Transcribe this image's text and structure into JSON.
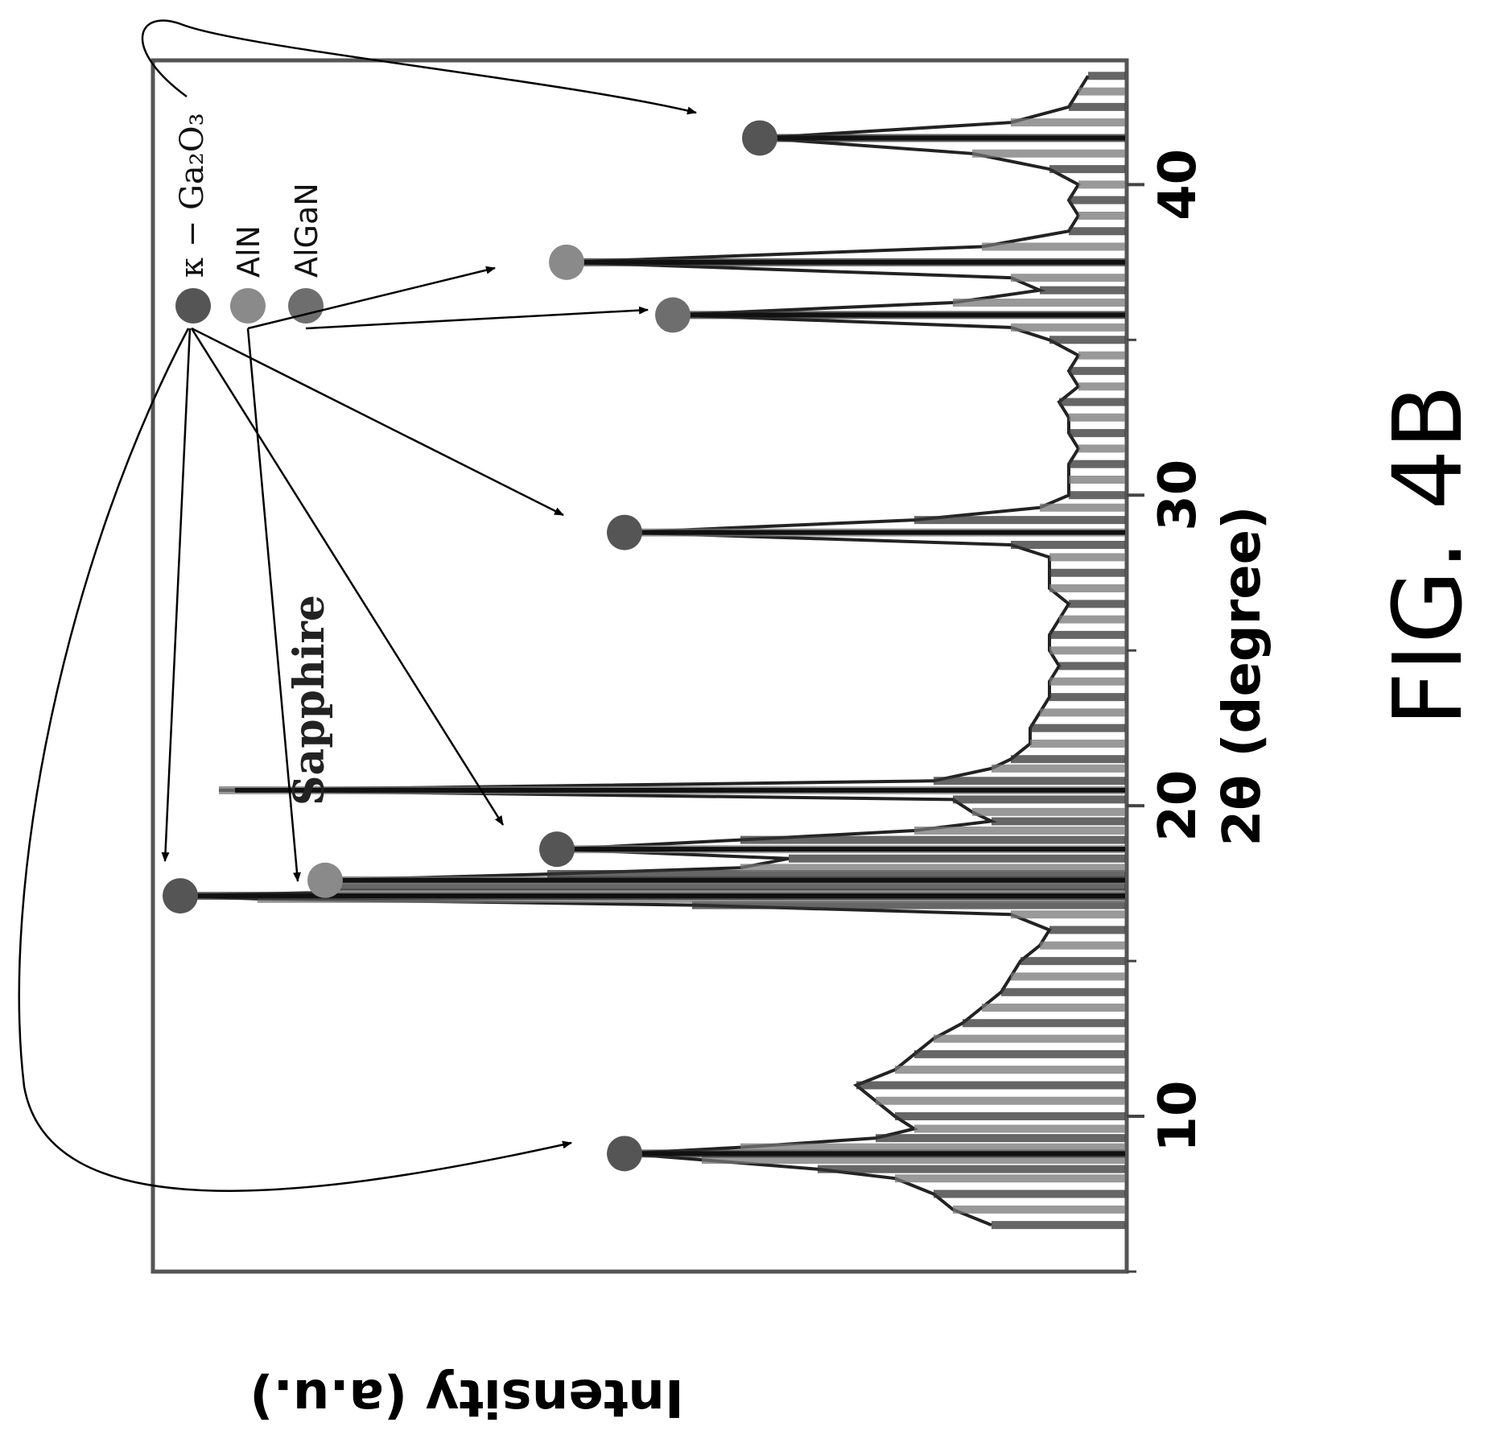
{
  "figure_caption": "FIG. 4B",
  "chart_data": {
    "type": "line",
    "xlabel": "2θ (degree)",
    "ylabel": "Intensity (a.u.)",
    "xlim": [
      5,
      44
    ],
    "ylim": [
      0,
      100
    ],
    "x_ticks": [
      10,
      20,
      30,
      40
    ],
    "x_tick_labels": [
      "10",
      "20",
      "30",
      "40"
    ],
    "grid": false,
    "orientation": "rotated-90-clockwise",
    "legend": {
      "placement": "top-left",
      "entries": [
        {
          "label": "κ − Ga₂O₃",
          "color": "#555555"
        },
        {
          "label": "AlN",
          "color": "#8a8a8a"
        },
        {
          "label": "AlGaN",
          "color": "#6e6e6e"
        }
      ]
    },
    "annotations": [
      {
        "text": "Sapphire",
        "x": 20.5
      }
    ],
    "peaks": [
      {
        "x": 8.8,
        "intensity": 52,
        "phase": "κ − Ga₂O₃"
      },
      {
        "x": 17.1,
        "intensity": 98,
        "phase": "κ − Ga₂O₃"
      },
      {
        "x": 17.6,
        "intensity": 83,
        "phase": "AlN"
      },
      {
        "x": 18.6,
        "intensity": 59,
        "phase": "κ − Ga₂O₃"
      },
      {
        "x": 20.5,
        "intensity": 94,
        "phase": "Sapphire"
      },
      {
        "x": 28.8,
        "intensity": 52,
        "phase": "κ − Ga₂O₃"
      },
      {
        "x": 35.8,
        "intensity": 47,
        "phase": "AlGaN"
      },
      {
        "x": 37.5,
        "intensity": 58,
        "phase": "AlN"
      },
      {
        "x": 41.5,
        "intensity": 38,
        "phase": "κ − Ga₂O₃"
      }
    ],
    "series": [
      {
        "x": [
          6.5,
          7,
          7.5,
          8,
          8.3,
          8.6,
          8.8,
          9.0,
          9.3,
          9.6,
          10,
          10.5,
          11,
          11.5,
          12,
          12.5,
          13,
          13.5,
          14,
          14.5,
          15,
          15.5,
          16,
          16.5,
          16.8,
          17.0,
          17.1,
          17.2,
          17.4,
          17.6,
          17.8,
          18.0,
          18.3,
          18.6,
          18.9,
          19.2,
          19.5,
          19.8,
          20.2,
          20.5,
          20.8,
          21.2,
          21.5,
          22,
          22.5,
          23,
          23.5,
          24,
          24.5,
          25,
          25.5,
          26,
          26.5,
          27,
          27.5,
          28,
          28.4,
          28.8,
          29.2,
          29.6,
          30,
          30.5,
          31,
          31.5,
          32,
          32.5,
          33,
          33.5,
          34,
          34.5,
          35,
          35.4,
          35.8,
          36.2,
          36.6,
          37.0,
          37.5,
          38.0,
          38.5,
          39,
          39.5,
          40,
          40.5,
          41.0,
          41.5,
          42.0,
          42.5,
          43,
          43.5
        ],
        "values": [
          14,
          18,
          20,
          24,
          32,
          44,
          52,
          40,
          26,
          22,
          24,
          26,
          28,
          24,
          22,
          20,
          17,
          15,
          13,
          12,
          11,
          9,
          8,
          12,
          45,
          90,
          98,
          84,
          83,
          83,
          60,
          40,
          35,
          59,
          40,
          22,
          14,
          16,
          18,
          94,
          20,
          14,
          12,
          10,
          10,
          9,
          8,
          8,
          7,
          8,
          8,
          7,
          6,
          8,
          8,
          8,
          12,
          52,
          22,
          9,
          6,
          6,
          6,
          5,
          6,
          6,
          7,
          5,
          6,
          5,
          8,
          12,
          47,
          18,
          9,
          12,
          58,
          15,
          6,
          5,
          6,
          5,
          8,
          16,
          38,
          12,
          6,
          5,
          4
        ]
      }
    ]
  }
}
